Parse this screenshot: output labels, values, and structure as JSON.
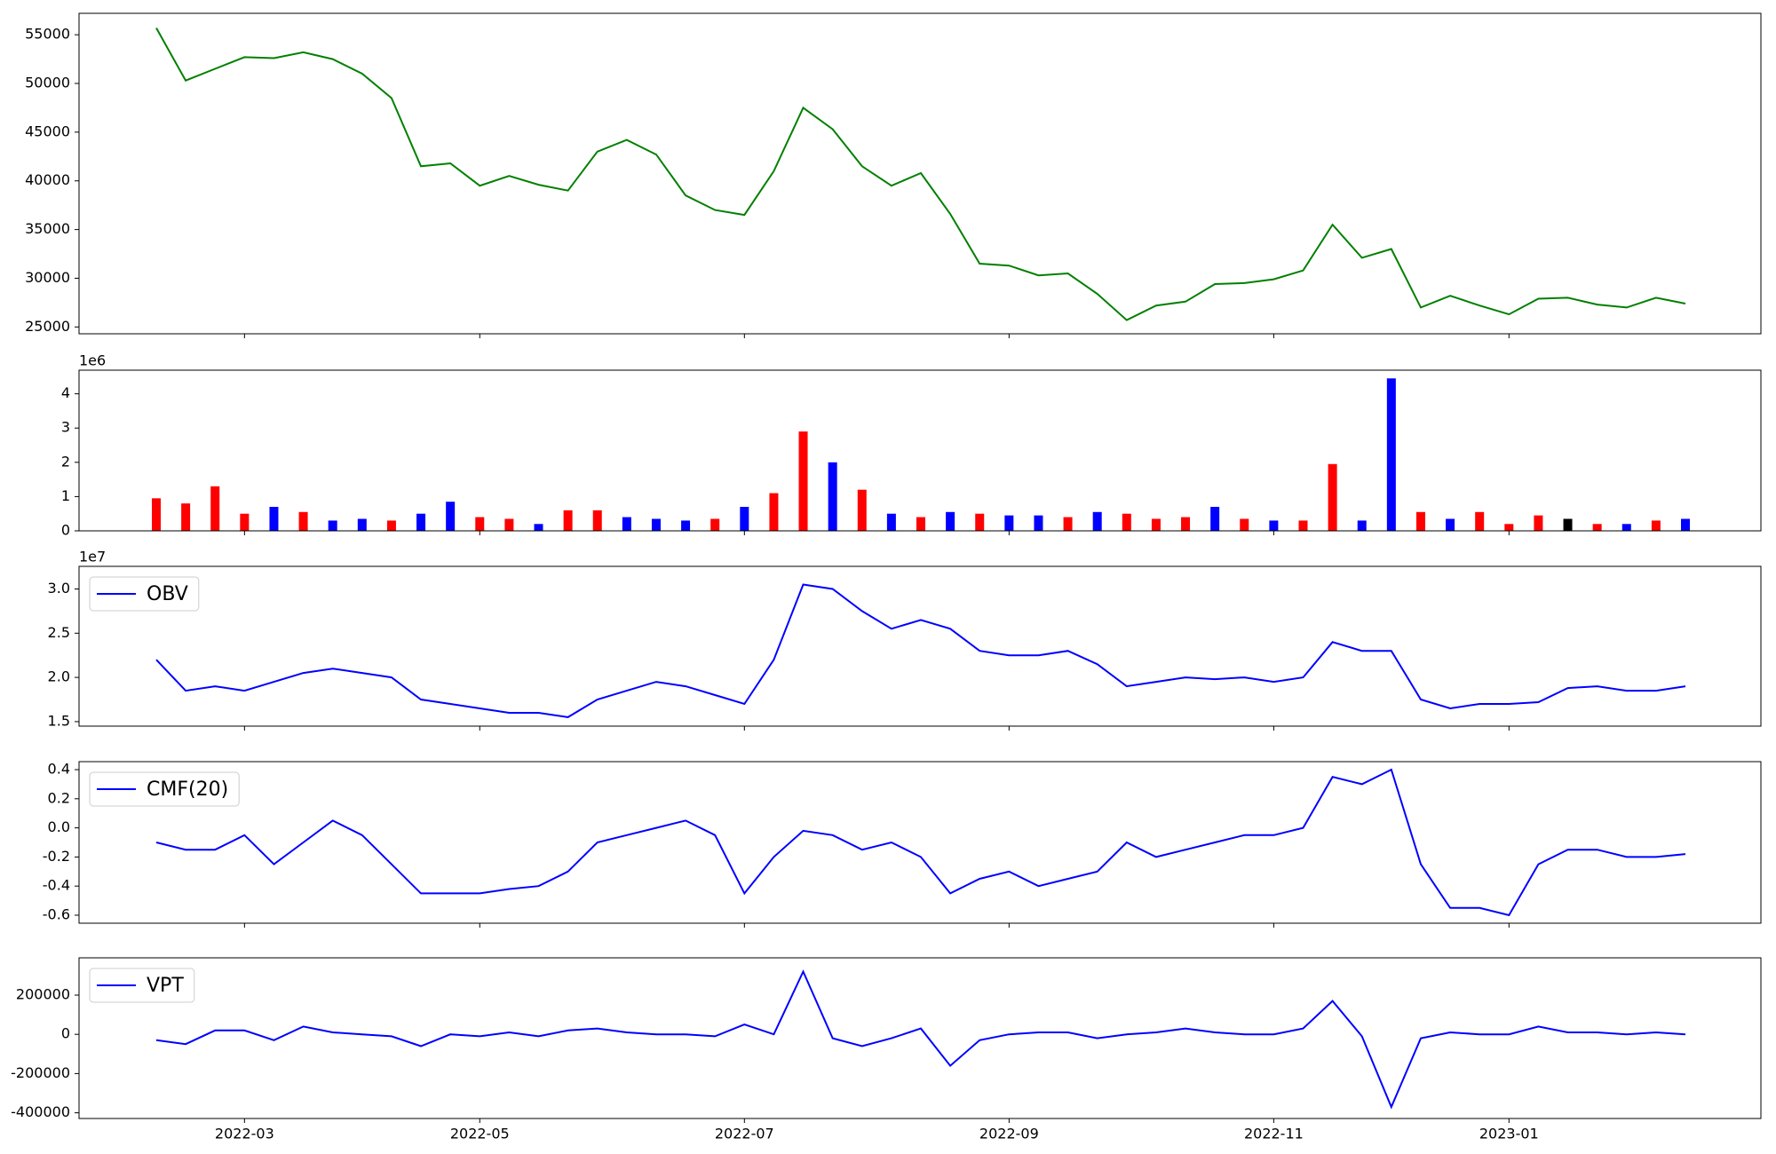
{
  "chart_data": [
    {
      "type": "line",
      "color": "#008000",
      "values": [
        55700,
        50300,
        51500,
        52700,
        52600,
        53200,
        52500,
        51000,
        48500,
        41500,
        41800,
        39500,
        40500,
        39600,
        39000,
        43000,
        44200,
        42700,
        38500,
        37000,
        36500,
        41000,
        47500,
        45300,
        41500,
        39500,
        40800,
        36600,
        31500,
        31300,
        30300,
        30500,
        28400,
        25700,
        27200,
        27600,
        29400,
        29500,
        29900,
        30800,
        35500,
        32100,
        33000,
        27000,
        28200,
        27200,
        26300,
        27900,
        28000,
        27300,
        27000,
        28000,
        27400
      ],
      "ylim": [
        24300,
        57200
      ],
      "yticks": [
        25000,
        30000,
        35000,
        40000,
        45000,
        50000,
        55000
      ]
    },
    {
      "type": "bar",
      "offset_label": "1e6",
      "values": [
        0.95,
        0.8,
        1.3,
        0.5,
        0.7,
        0.55,
        0.3,
        0.35,
        0.3,
        0.5,
        0.85,
        0.4,
        0.35,
        0.2,
        0.6,
        0.6,
        0.4,
        0.35,
        0.3,
        0.35,
        0.7,
        1.1,
        2.9,
        2.0,
        1.2,
        0.5,
        0.4,
        0.55,
        0.5,
        0.45,
        0.45,
        0.4,
        0.55,
        0.5,
        0.35,
        0.4,
        0.7,
        0.35,
        0.3,
        0.3,
        1.95,
        0.3,
        4.45,
        0.55,
        0.35,
        0.55,
        0.2,
        0.45,
        0.35,
        0.2,
        0.2,
        0.3,
        0.35
      ],
      "colors": [
        "red",
        "red",
        "red",
        "red",
        "blue",
        "red",
        "blue",
        "blue",
        "red",
        "blue",
        "blue",
        "red",
        "red",
        "blue",
        "red",
        "red",
        "blue",
        "blue",
        "blue",
        "red",
        "blue",
        "red",
        "red",
        "blue",
        "red",
        "blue",
        "red",
        "blue",
        "red",
        "blue",
        "blue",
        "red",
        "blue",
        "red",
        "red",
        "red",
        "blue",
        "red",
        "blue",
        "red",
        "red",
        "blue",
        "blue",
        "red",
        "blue",
        "red",
        "red",
        "red",
        "black",
        "red",
        "blue",
        "red",
        "blue"
      ],
      "ylim": [
        0,
        4.69
      ],
      "yticks": [
        0,
        1,
        2,
        3,
        4
      ]
    },
    {
      "type": "line",
      "offset_label": "1e7",
      "legend": "upper left",
      "series": [
        {
          "name": "OBV",
          "color": "#0000ff",
          "values": [
            2.2,
            1.85,
            1.9,
            1.85,
            1.95,
            2.05,
            2.1,
            2.05,
            2.0,
            1.75,
            1.7,
            1.65,
            1.6,
            1.6,
            1.55,
            1.75,
            1.85,
            1.95,
            1.9,
            1.8,
            1.7,
            2.2,
            3.05,
            3.0,
            2.75,
            2.55,
            2.65,
            2.55,
            2.3,
            2.25,
            2.25,
            2.3,
            2.15,
            1.9,
            1.95,
            2.0,
            1.98,
            2.0,
            1.95,
            2.0,
            2.4,
            2.3,
            2.3,
            1.75,
            1.65,
            1.7,
            1.7,
            1.72,
            1.88,
            1.9,
            1.85,
            1.85,
            1.9
          ]
        }
      ],
      "ylim": [
        1.449,
        3.256
      ],
      "yticks": [
        1.5,
        {
          "value": 2.0,
          "label": "2.0"
        },
        2.5,
        {
          "value": 3.0,
          "label": "3.0"
        }
      ]
    },
    {
      "type": "line",
      "legend": "upper left",
      "series": [
        {
          "name": "CMF(20)",
          "color": "#0000ff",
          "values": [
            -0.1,
            -0.15,
            -0.15,
            -0.05,
            -0.25,
            -0.1,
            0.05,
            -0.05,
            -0.25,
            -0.45,
            -0.45,
            -0.45,
            -0.42,
            -0.4,
            -0.3,
            -0.1,
            -0.05,
            0.0,
            0.05,
            -0.05,
            -0.45,
            -0.2,
            -0.02,
            -0.05,
            -0.15,
            -0.1,
            -0.2,
            -0.45,
            -0.35,
            -0.3,
            -0.4,
            -0.35,
            -0.3,
            -0.1,
            -0.2,
            -0.15,
            -0.1,
            -0.05,
            -0.05,
            0.0,
            0.35,
            0.3,
            0.4,
            -0.25,
            -0.55,
            -0.55,
            -0.6,
            -0.25,
            -0.15,
            -0.15,
            -0.2,
            -0.2,
            -0.18
          ]
        }
      ],
      "ylim": [
        -0.655,
        0.455
      ],
      "yticks": [
        -0.6,
        -0.4,
        -0.2,
        {
          "value": 0.0,
          "label": "0.0"
        },
        0.2,
        0.4
      ]
    },
    {
      "type": "line",
      "legend": "upper left",
      "categories": [
        null,
        null,
        null,
        "2022-03",
        null,
        null,
        null,
        null,
        null,
        null,
        null,
        "2022-05",
        null,
        null,
        null,
        null,
        null,
        null,
        null,
        null,
        "2022-07",
        null,
        null,
        null,
        null,
        null,
        null,
        null,
        null,
        "2022-09",
        null,
        null,
        null,
        null,
        null,
        null,
        null,
        null,
        "2022-11",
        null,
        null,
        null,
        null,
        null,
        null,
        null,
        "2023-01",
        null,
        null,
        null,
        null,
        null,
        null
      ],
      "series": [
        {
          "name": "VPT",
          "color": "#0000ff",
          "values": [
            -30000,
            -50000,
            20000,
            20000,
            -30000,
            40000,
            10000,
            0,
            -10000,
            -60000,
            0,
            -10000,
            10000,
            -10000,
            20000,
            30000,
            10000,
            0,
            0,
            -10000,
            50000,
            0,
            320000,
            -20000,
            -60000,
            -20000,
            30000,
            -160000,
            -30000,
            0,
            10000,
            10000,
            -20000,
            0,
            10000,
            30000,
            10000,
            0,
            0,
            30000,
            170000,
            -10000,
            -370000,
            -20000,
            10000,
            0,
            0,
            40000,
            10000,
            10000,
            0,
            10000,
            0
          ]
        }
      ],
      "ylim": [
        -429000,
        390000
      ],
      "yticks": [
        -400000,
        -200000,
        0,
        200000
      ]
    }
  ]
}
